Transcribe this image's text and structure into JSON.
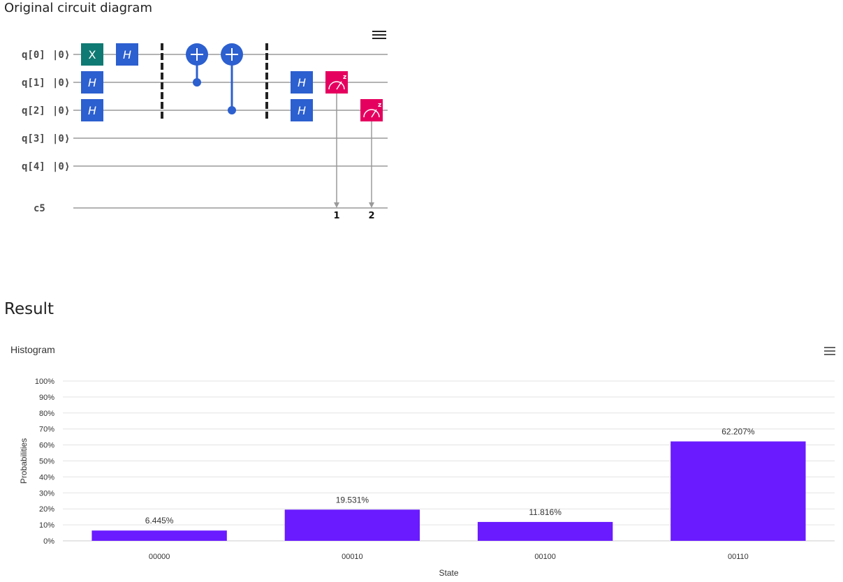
{
  "circuit": {
    "title": "Original circuit diagram",
    "qubits": [
      {
        "label": "q[0]",
        "init": "|0⟩"
      },
      {
        "label": "q[1]",
        "init": "|0⟩"
      },
      {
        "label": "q[2]",
        "init": "|0⟩"
      },
      {
        "label": "q[3]",
        "init": "|0⟩"
      },
      {
        "label": "q[4]",
        "init": "|0⟩"
      }
    ],
    "classical_register": "c5",
    "gates": {
      "x": "X",
      "h": "H",
      "measure_basis": "z"
    },
    "measurement_bits": [
      "1",
      "2"
    ],
    "colors": {
      "x_gate": "#0f7a73",
      "h_gate": "#2c5fcf",
      "cnot": "#2c5fcf",
      "measure": "#e5005f",
      "barrier": "#222222",
      "wire": "#9a9a9a"
    },
    "menu_icon": "hamburger-menu-icon"
  },
  "result": {
    "title": "Result"
  },
  "histogram": {
    "title": "Histogram",
    "menu_icon": "hamburger-menu-icon"
  },
  "chart_data": {
    "type": "bar",
    "title": "Histogram",
    "xlabel": "State",
    "ylabel": "Probabilities",
    "categories": [
      "00000",
      "00010",
      "00100",
      "00110"
    ],
    "values": [
      6.445,
      19.531,
      11.816,
      62.207
    ],
    "value_labels": [
      "6.445%",
      "19.531%",
      "11.816%",
      "62.207%"
    ],
    "ylim": [
      0,
      100
    ],
    "yticks": [
      "0%",
      "10%",
      "20%",
      "30%",
      "40%",
      "50%",
      "60%",
      "70%",
      "80%",
      "90%",
      "100%"
    ],
    "grid": true,
    "bar_color": "#6a1bff"
  }
}
